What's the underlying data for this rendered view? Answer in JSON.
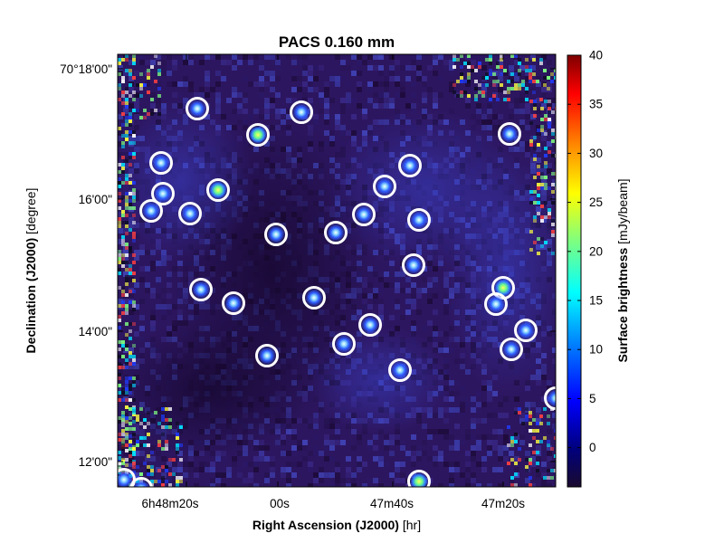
{
  "figure": {
    "title": "PACS 0.160 mm",
    "x_axis": {
      "label": "Right Ascension (J2000)",
      "unit": "[hr]",
      "ticks": [
        "6h48m20s",
        "00s",
        "47m40s",
        "47m20s"
      ]
    },
    "y_axis": {
      "label": "Declination (J2000)",
      "unit": "[degree]",
      "ticks": [
        "70°18'00\"",
        "16'00\"",
        "14'00\"",
        "12'00\""
      ]
    },
    "colorbar": {
      "label": "Surface brightness",
      "unit": "[mJy/beam]",
      "ticks": [
        "40",
        "35",
        "30",
        "25",
        "20",
        "15",
        "10",
        "5",
        "0"
      ],
      "range": [
        -4,
        40
      ],
      "colormap": "jet",
      "colors": [
        "#00007f",
        "#0000ff",
        "#007fff",
        "#00ffff",
        "#7fff7f",
        "#ffff00",
        "#ff7f00",
        "#ff0000",
        "#7f0000"
      ],
      "low_color": "#1a0a2e"
    },
    "map": {
      "background": "#2d1660",
      "source_marker_color": "#ffffff",
      "source_count": 31
    }
  }
}
